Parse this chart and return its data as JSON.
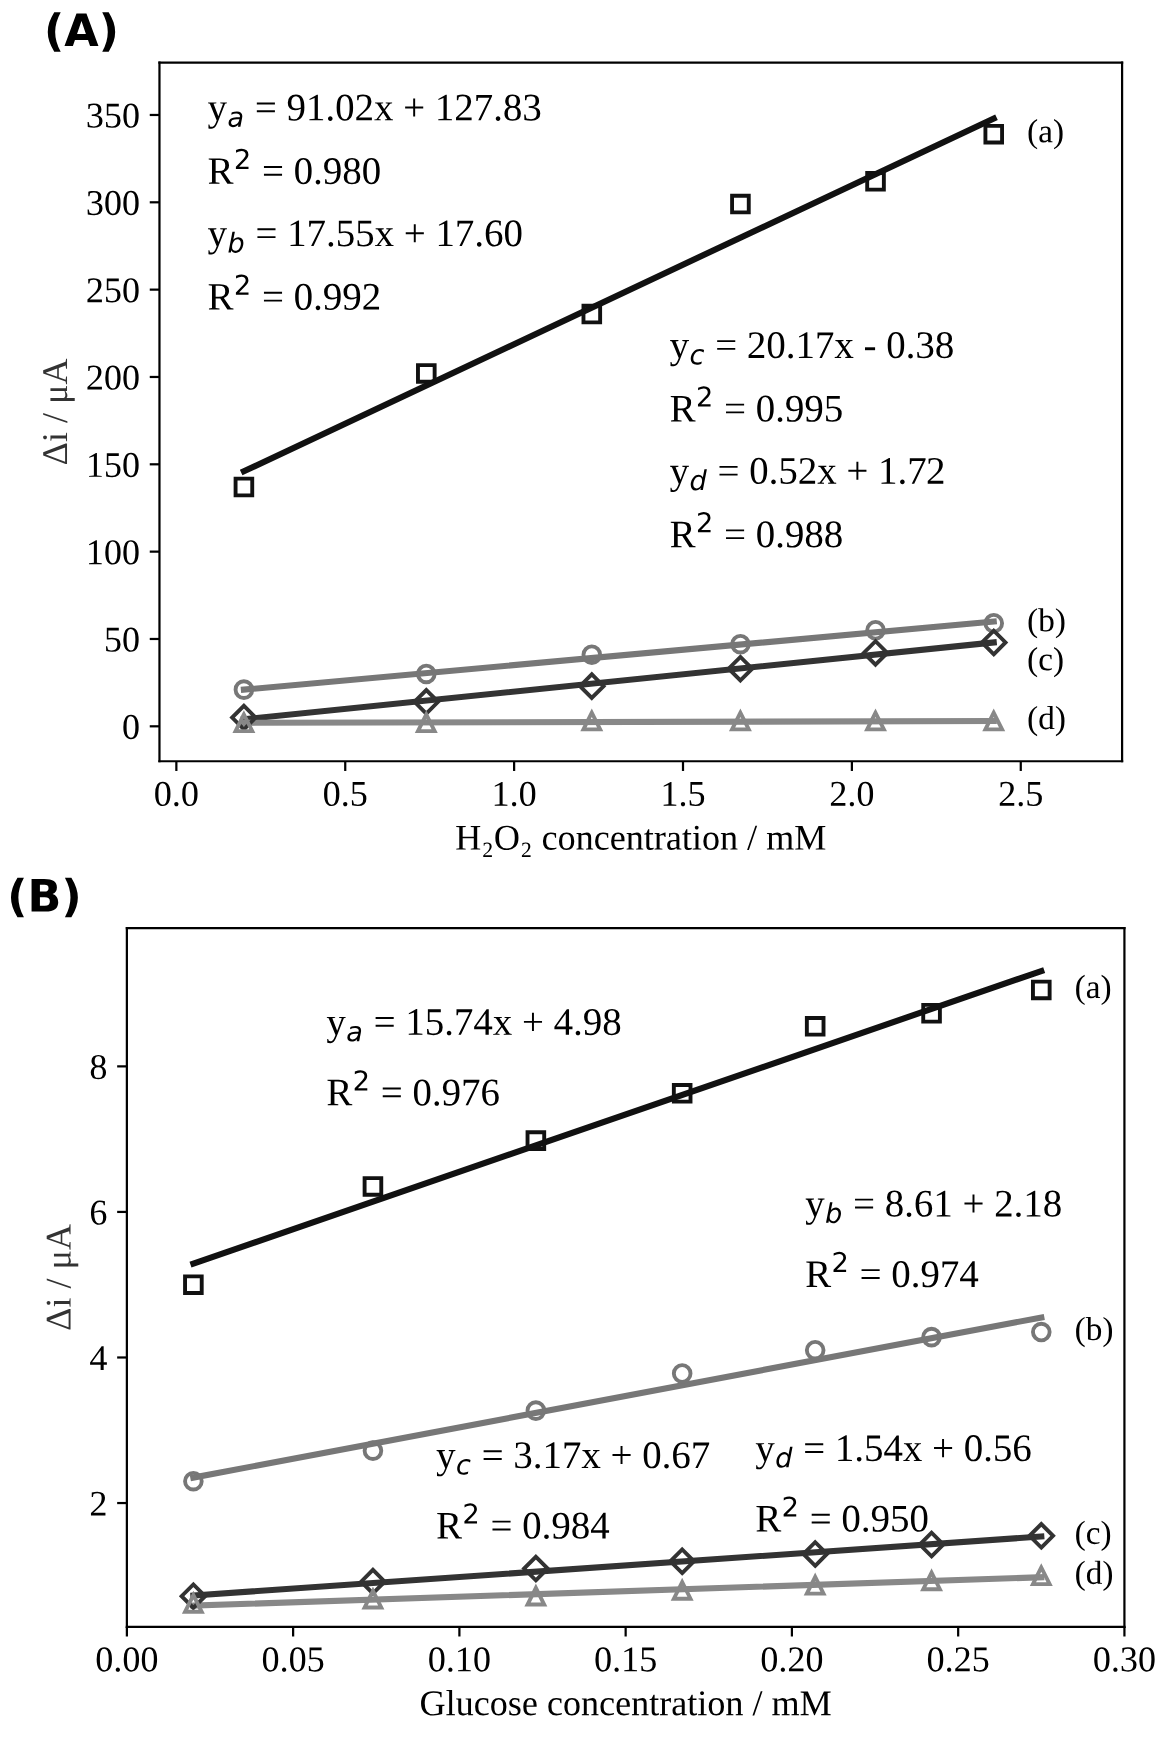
{
  "chart_data": [
    {
      "type": "scatter",
      "title": "(A)",
      "xlabel": "H₂O₂ concentration / mM",
      "ylabel": "Δi / μA",
      "x": [
        0.2,
        0.74,
        1.23,
        1.67,
        2.07,
        2.42
      ],
      "xlim": [
        -0.05,
        2.8
      ],
      "xticks": [
        {
          "value": 0,
          "label": "0.0"
        },
        0.5,
        {
          "value": 1,
          "label": "1.0"
        },
        1.5,
        {
          "value": 2,
          "label": "2.0"
        },
        2.5
      ],
      "ylim": [
        -20,
        380
      ],
      "yticks": [
        0,
        50,
        100,
        150,
        200,
        250,
        300,
        350
      ],
      "grid": false,
      "legend": false,
      "series": [
        {
          "name": "(a)",
          "color": "#111111",
          "marker": "square",
          "values": [
            137,
            202,
            236,
            299,
            312,
            339
          ]
        },
        {
          "name": "(b)",
          "color": "#777777",
          "marker": "circle",
          "values": [
            21,
            30,
            41,
            47,
            55,
            59
          ]
        },
        {
          "name": "(c)",
          "color": "#333333",
          "marker": "diamond",
          "values": [
            5,
            14,
            23,
            33,
            42,
            48
          ]
        },
        {
          "name": "(d)",
          "color": "#888888",
          "marker": "triangle",
          "values": [
            2,
            2,
            3,
            3,
            3,
            3
          ]
        },
        {
          "type": "line",
          "color": "#111111",
          "x": [
            0.2,
            2.42
          ],
          "values": [
            146,
            348
          ]
        },
        {
          "type": "line",
          "color": "#777777",
          "x": [
            0.2,
            2.42
          ],
          "values": [
            21,
            60
          ]
        },
        {
          "type": "line",
          "color": "#333333",
          "x": [
            0.2,
            2.42
          ],
          "values": [
            4,
            48
          ]
        },
        {
          "type": "line",
          "color": "#888888",
          "x": [
            0.2,
            2.42
          ],
          "values": [
            2,
            3
          ]
        }
      ],
      "annotations": [
        "y$_{a}$ = 91.02x + 127.83",
        "R$^{2}$ = 0.980",
        "y$_{b}$ = 17.55x + 17.60",
        "R$^{2}$ = 0.992",
        "y$_{c}$ = 20.17x - 0.38",
        "R$^{2}$ = 0.995",
        "y$_{d}$ = 0.52x + 1.72",
        "R$^{2}$ = 0.988"
      ]
    },
    {
      "type": "scatter",
      "title": "(B)",
      "xlabel": "Glucose concentration / mM",
      "ylabel": "Δi / μA",
      "x": [
        0.02,
        0.074,
        0.123,
        0.167,
        0.207,
        0.242,
        0.275
      ],
      "xlim": [
        0,
        0.3
      ],
      "xticks": [
        {
          "value": 0,
          "label": "0.00"
        },
        0.05,
        {
          "value": 0.1,
          "label": "0.10"
        },
        0.15,
        {
          "value": 0.2,
          "label": "0.20"
        },
        0.25,
        {
          "value": 0.3,
          "label": "0.30"
        }
      ],
      "ylim": [
        0.3,
        9.9
      ],
      "yticks": [
        2,
        4,
        6,
        8
      ],
      "grid": false,
      "legend": false,
      "series": [
        {
          "name": "(a)",
          "color": "#111111",
          "marker": "square",
          "values": [
            5.0,
            6.35,
            6.98,
            7.63,
            8.55,
            8.73,
            9.05
          ]
        },
        {
          "name": "(b)",
          "color": "#777777",
          "marker": "circle",
          "values": [
            2.3,
            2.72,
            3.27,
            3.78,
            4.1,
            4.28,
            4.35
          ]
        },
        {
          "name": "(c)",
          "color": "#333333",
          "marker": "diamond",
          "values": [
            0.72,
            0.92,
            1.1,
            1.2,
            1.3,
            1.43,
            1.55
          ]
        },
        {
          "name": "(d)",
          "color": "#888888",
          "marker": "triangle",
          "values": [
            0.62,
            0.68,
            0.72,
            0.8,
            0.87,
            0.93,
            1.0
          ]
        },
        {
          "type": "line",
          "color": "#111111",
          "x": [
            0.02,
            0.275
          ],
          "values": [
            5.29,
            9.31
          ]
        },
        {
          "type": "line",
          "color": "#777777",
          "x": [
            0.02,
            0.275
          ],
          "values": [
            2.35,
            4.55
          ]
        },
        {
          "type": "line",
          "color": "#333333",
          "x": [
            0.02,
            0.275
          ],
          "values": [
            0.73,
            1.54
          ]
        },
        {
          "type": "line",
          "color": "#888888",
          "x": [
            0.02,
            0.275
          ],
          "values": [
            0.59,
            0.98
          ]
        }
      ],
      "annotations": [
        "y$_{a}$ = 15.74x + 4.98",
        "R$^{2}$ = 0.976",
        "y$_{b}$ = 8.61 + 2.18",
        "R$^{2}$ = 0.974",
        "y$_{c}$ = 3.17x + 0.67",
        "R$^{2}$ = 0.984",
        "y$_{d}$ = 1.54x + 0.56",
        "R$^{2}$ = 0.950"
      ]
    }
  ]
}
